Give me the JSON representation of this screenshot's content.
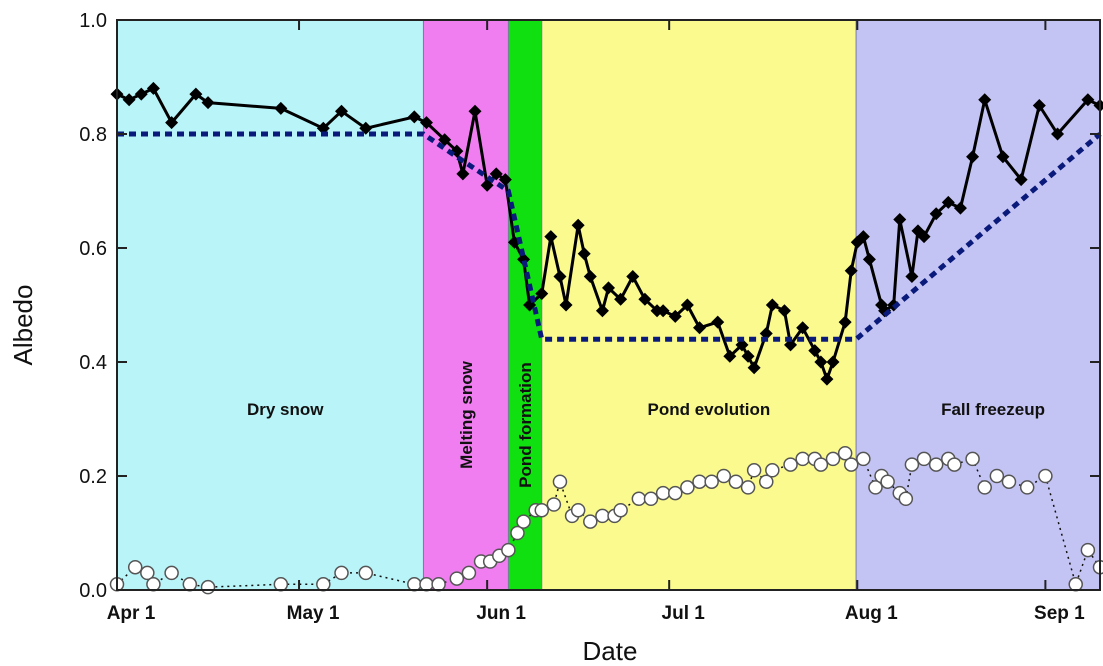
{
  "chart_data": {
    "type": "line",
    "xlabel": "Date",
    "ylabel": "Albedo",
    "xlim": [
      0,
      162
    ],
    "ylim": [
      0,
      1.0
    ],
    "grid": false,
    "x_axis_year_note": "",
    "y_ticks": [
      {
        "value": 0.0,
        "label": "0.0"
      },
      {
        "value": 0.2,
        "label": "0.2"
      },
      {
        "value": 0.4,
        "label": "0.4"
      },
      {
        "value": 0.6,
        "label": "0.6"
      },
      {
        "value": 0.8,
        "label": "0.8"
      },
      {
        "value": 1.0,
        "label": "1.0"
      }
    ],
    "x_ticks": [
      {
        "value": 0,
        "label": "Apr 1"
      },
      {
        "value": 30,
        "label": "May 1"
      },
      {
        "value": 61,
        "label": "Jun 1"
      },
      {
        "value": 91,
        "label": "Jul 1"
      },
      {
        "value": 122,
        "label": "Aug 1"
      },
      {
        "value": 153,
        "label": "Sep 1"
      }
    ],
    "phases": [
      {
        "label": "Dry snow",
        "x0": 0,
        "x1": 50.5,
        "color": "#b8f4f8",
        "vertical": false
      },
      {
        "label": "Melting snow",
        "x0": 50.5,
        "x1": 64.5,
        "color": "#f07ef0",
        "vertical": true
      },
      {
        "label": "Pond formation",
        "x0": 64.5,
        "x1": 70,
        "color": "#10e010",
        "vertical": true
      },
      {
        "label": "Pond evolution",
        "x0": 70,
        "x1": 121.8,
        "color": "#fafa8e",
        "vertical": false
      },
      {
        "label": "Fall freezeup",
        "x0": 121.8,
        "x1": 162,
        "color": "#c4c4f4",
        "vertical": false
      }
    ],
    "series": [
      {
        "style": "line-diamond",
        "color": "#000000",
        "x": [
          0,
          2,
          4,
          6,
          9,
          13,
          15,
          27,
          34,
          37,
          41,
          49,
          51,
          54,
          56,
          57,
          59,
          61,
          62.5,
          64,
          65.5,
          67,
          68,
          70,
          71.5,
          73,
          74,
          76,
          77,
          78,
          80,
          81,
          83,
          85,
          87,
          89,
          90,
          92,
          94,
          96,
          99,
          101,
          103,
          104,
          105,
          107,
          108,
          110,
          111,
          113,
          115,
          116,
          117,
          118,
          120,
          121,
          122,
          123,
          124,
          126,
          126.5,
          128,
          129,
          131,
          132,
          133,
          135,
          137,
          139,
          141,
          143,
          146,
          149,
          152,
          155,
          160,
          162
        ],
        "y": [
          0.87,
          0.86,
          0.87,
          0.88,
          0.82,
          0.87,
          0.855,
          0.845,
          0.81,
          0.84,
          0.81,
          0.83,
          0.82,
          0.79,
          0.77,
          0.73,
          0.84,
          0.71,
          0.73,
          0.72,
          0.61,
          0.58,
          0.5,
          0.52,
          0.62,
          0.55,
          0.5,
          0.64,
          0.59,
          0.55,
          0.49,
          0.53,
          0.51,
          0.55,
          0.51,
          0.49,
          0.49,
          0.48,
          0.5,
          0.46,
          0.47,
          0.41,
          0.43,
          0.41,
          0.39,
          0.45,
          0.5,
          0.49,
          0.43,
          0.46,
          0.42,
          0.4,
          0.37,
          0.4,
          0.47,
          0.56,
          0.61,
          0.62,
          0.58,
          0.5,
          0.49,
          0.5,
          0.65,
          0.55,
          0.63,
          0.62,
          0.66,
          0.68,
          0.67,
          0.76,
          0.86,
          0.76,
          0.72,
          0.85,
          0.8,
          0.86,
          0.85
        ]
      },
      {
        "style": "dotted-open-circle",
        "color": "#000000",
        "x": [
          0,
          3,
          5,
          6,
          9,
          12,
          15,
          27,
          34,
          37,
          41,
          49,
          51,
          53,
          56,
          58,
          60,
          61.5,
          63,
          64.5,
          66,
          67,
          69,
          70,
          72,
          73,
          75,
          76,
          78,
          80,
          82,
          83,
          86,
          88,
          90,
          92,
          94,
          96,
          98,
          100,
          102,
          104,
          105,
          107,
          108,
          111,
          113,
          115,
          116,
          118,
          120,
          121,
          123,
          125,
          126,
          127,
          129,
          130,
          131,
          133,
          135,
          137,
          138,
          141,
          143,
          145,
          147,
          150,
          153,
          158,
          160,
          162
        ],
        "y": [
          0.01,
          0.04,
          0.03,
          0.01,
          0.03,
          0.01,
          0.005,
          0.01,
          0.01,
          0.03,
          0.03,
          0.01,
          0.01,
          0.01,
          0.02,
          0.03,
          0.05,
          0.05,
          0.06,
          0.07,
          0.1,
          0.12,
          0.14,
          0.14,
          0.15,
          0.19,
          0.13,
          0.14,
          0.12,
          0.13,
          0.13,
          0.14,
          0.16,
          0.16,
          0.17,
          0.17,
          0.18,
          0.19,
          0.19,
          0.2,
          0.19,
          0.18,
          0.21,
          0.19,
          0.21,
          0.22,
          0.23,
          0.23,
          0.22,
          0.23,
          0.24,
          0.22,
          0.23,
          0.18,
          0.2,
          0.19,
          0.17,
          0.16,
          0.22,
          0.23,
          0.22,
          0.23,
          0.22,
          0.23,
          0.18,
          0.2,
          0.19,
          0.18,
          0.2,
          0.01,
          0.07,
          0.04
        ]
      },
      {
        "style": "dashed-navy",
        "color": "#0a1a7a",
        "x": [
          0,
          50.5,
          56,
          64.5,
          70,
          121.8,
          162
        ],
        "y": [
          0.8,
          0.8,
          0.76,
          0.7,
          0.44,
          0.44,
          0.8
        ]
      }
    ]
  }
}
